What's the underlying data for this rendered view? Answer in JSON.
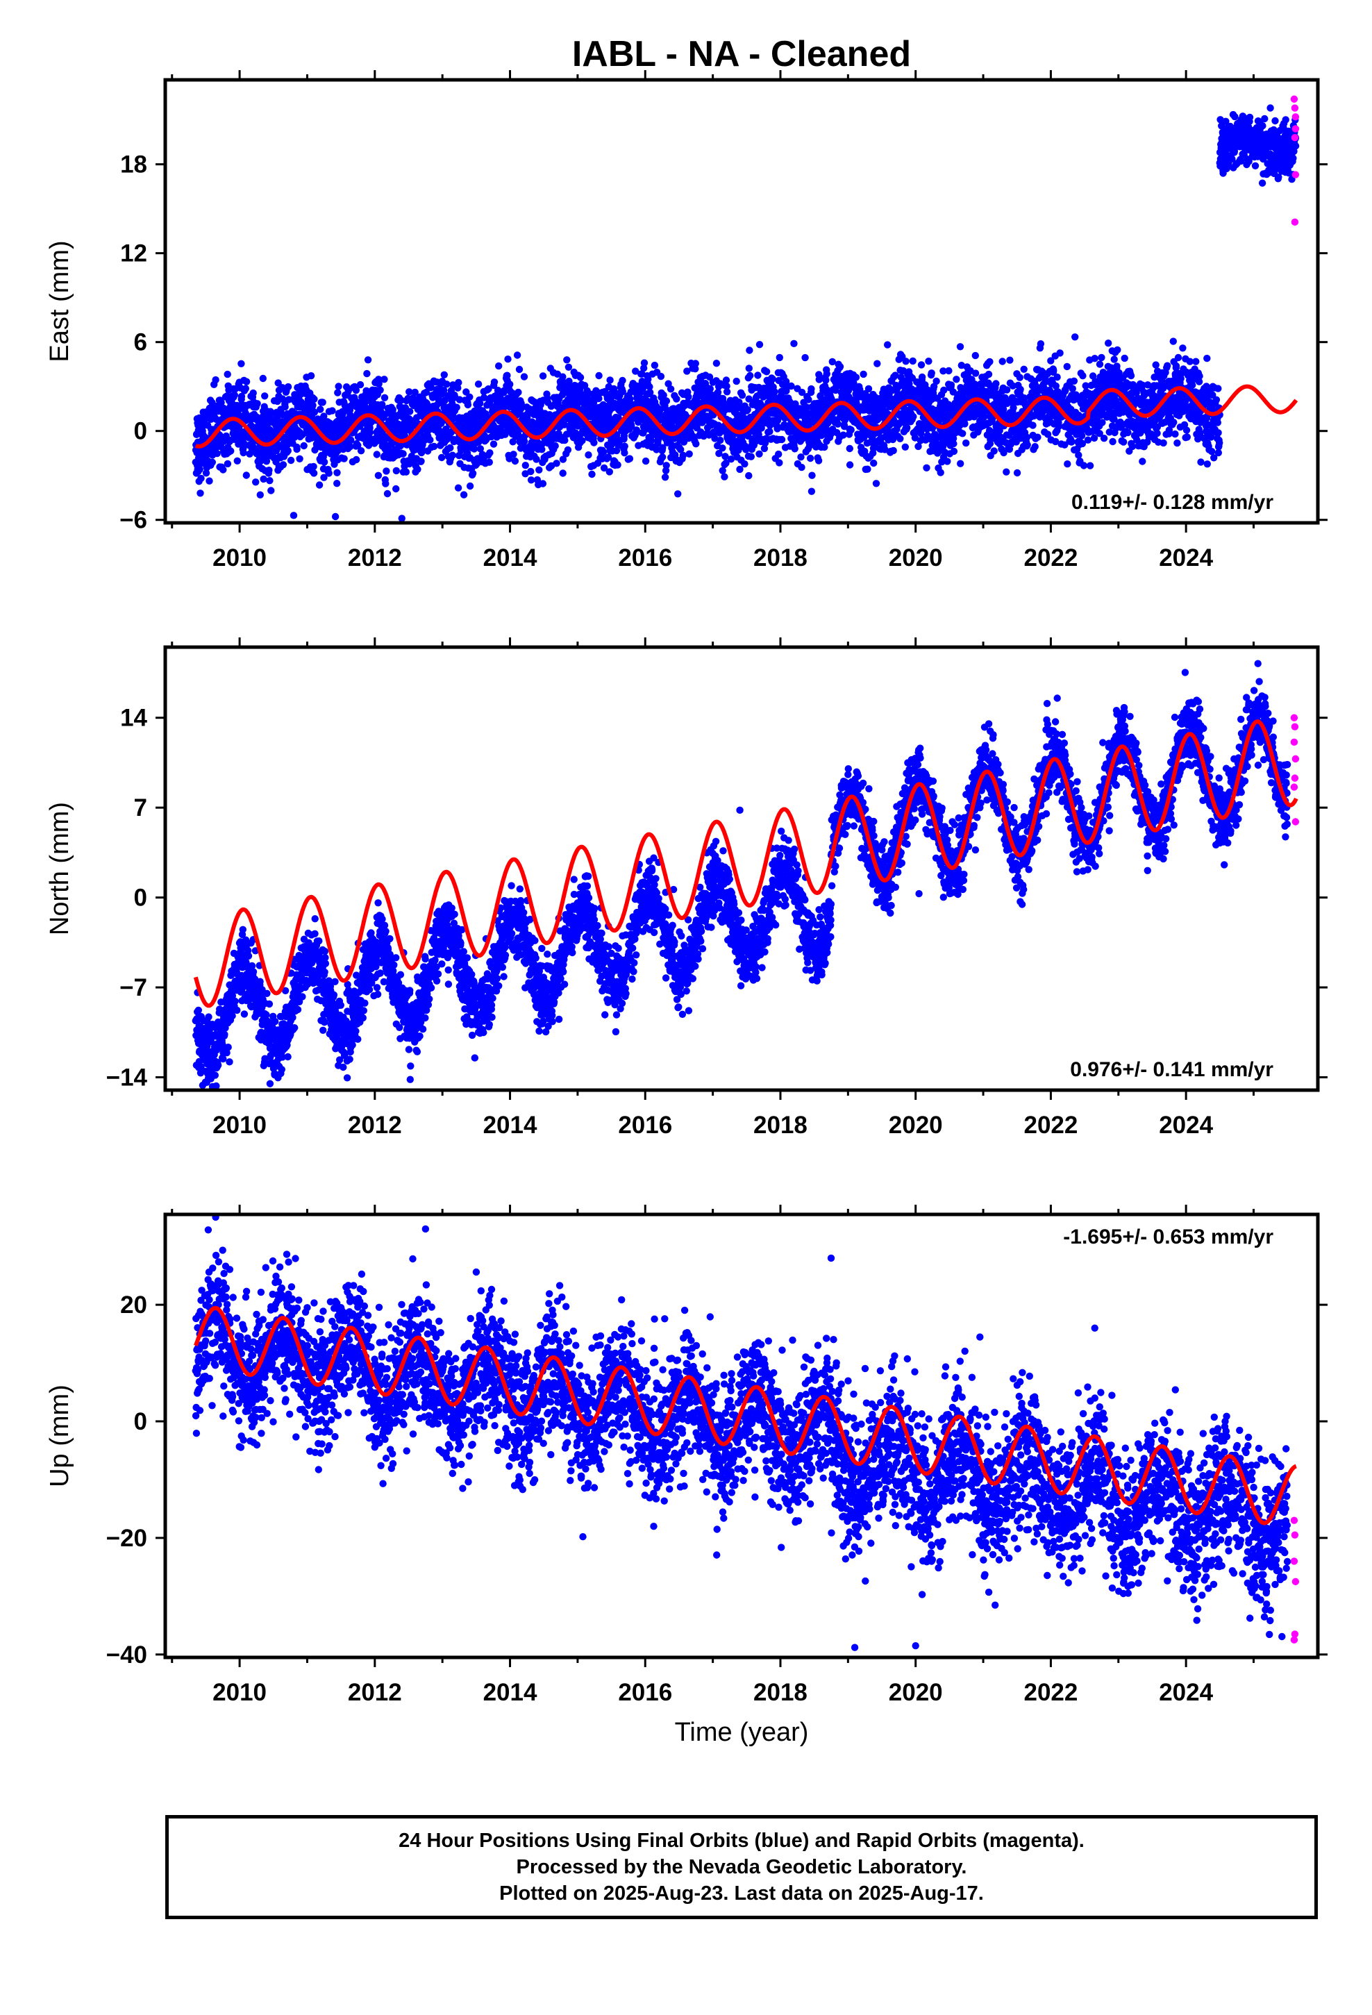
{
  "title": "IABL  - NA - Cleaned",
  "colors": {
    "final": "#0000ff",
    "rapid": "#ff00ff",
    "model": "#ff0000",
    "axis": "#000000",
    "background": "#ffffff"
  },
  "xaxis": {
    "label": "Time (year)",
    "range": [
      2008.9,
      2025.95
    ],
    "ticks": [
      2010,
      2012,
      2014,
      2016,
      2018,
      2020,
      2022,
      2024
    ]
  },
  "footer": {
    "line1": "24 Hour Positions Using Final Orbits (blue) and Rapid Orbits (magenta).",
    "line2": "Processed by the Nevada Geodetic Laboratory.",
    "line3": "Plotted on 2025-Aug-23. Last data on 2025-Aug-17."
  },
  "chart_data": [
    {
      "type": "scatter",
      "name": "East",
      "ylabel": "East (mm)",
      "ylim": [
        -6.2,
        23.7
      ],
      "yticks": [
        -6,
        0,
        6,
        12,
        18
      ],
      "xlim": [
        2008.9,
        2025.95
      ],
      "velocity": "0.119+/- 0.128 mm/yr",
      "velocity_position": "bottom-right",
      "x_start": 2009.35,
      "x_end_final": 2024.5,
      "x_end_rapid": 2025.63,
      "series": [
        {
          "name": "Final orbits",
          "color": "#0000ff",
          "segments": [
            {
              "start": 2009.35,
              "end": 2024.5,
              "offset": 0.0,
              "trend": 0.119,
              "amplitude": 0.8,
              "phase": 0.35,
              "noise": 1.3
            },
            {
              "start": 2024.5,
              "end": 2025.63,
              "offset": 19.3,
              "trend": 0.0,
              "amplitude": 0.4,
              "phase": 0.35,
              "noise": 0.9
            }
          ]
        },
        {
          "name": "Rapid orbits",
          "color": "#ff00ff",
          "points": [
            [
              2025.6,
              22.4
            ],
            [
              2025.61,
              21.8
            ],
            [
              2025.62,
              20.4
            ],
            [
              2025.61,
              19.8
            ],
            [
              2025.62,
              17.3
            ],
            [
              2025.61,
              14.1
            ],
            [
              2025.62,
              21.2
            ]
          ]
        }
      ],
      "model": {
        "color": "#ff0000",
        "anchor_x": 2009.35,
        "anchor_y": -1.0,
        "trend": 0.119,
        "amplitude": 0.9,
        "phase": 0.35,
        "break_x": 2022.55,
        "break_offset": 0.4
      },
      "outliers": [
        [
          2009.4,
          -3.4
        ],
        [
          2011.9,
          4.8
        ],
        [
          2018.2,
          5.9
        ],
        [
          2022.65,
          4.9
        ],
        [
          2012.4,
          -5.9
        ],
        [
          2010.8,
          -5.7
        ]
      ]
    },
    {
      "type": "scatter",
      "name": "North",
      "ylabel": "North (mm)",
      "ylim": [
        -15,
        19.5
      ],
      "yticks": [
        -14,
        -7,
        0,
        7,
        14
      ],
      "xlim": [
        2008.9,
        2025.95
      ],
      "velocity": "0.976+/- 0.141 mm/yr",
      "velocity_position": "bottom-right",
      "x_start": 2009.35,
      "x_end_final": 2025.5,
      "x_end_rapid": 2025.63,
      "series": [
        {
          "name": "Final orbits",
          "color": "#0000ff",
          "segments": [
            {
              "start": 2009.35,
              "end": 2018.75,
              "offset": -9.6,
              "trend": 0.976,
              "amplitude": 3.3,
              "phase": 0.2,
              "noise": 1.3
            },
            {
              "start": 2018.75,
              "end": 2025.5,
              "offset": -5.0,
              "trend": 0.976,
              "amplitude": 3.6,
              "phase": 0.2,
              "noise": 1.3
            }
          ]
        },
        {
          "name": "Rapid orbits",
          "color": "#ff00ff",
          "points": [
            [
              2025.6,
              14.0
            ],
            [
              2025.61,
              13.3
            ],
            [
              2025.6,
              12.1
            ],
            [
              2025.62,
              10.8
            ],
            [
              2025.61,
              9.3
            ],
            [
              2025.6,
              8.6
            ],
            [
              2025.62,
              5.9
            ]
          ]
        }
      ],
      "model": {
        "color": "#ff0000",
        "anchor_x": 2009.35,
        "anchor_y": -6.2,
        "trend": 0.976,
        "amplitude": 3.5,
        "phase": 0.2,
        "break_x": null,
        "break_offset": 0
      },
      "outliers": [
        [
          2009.4,
          -10.0
        ],
        [
          2009.85,
          -12.8
        ],
        [
          2017.4,
          6.8
        ],
        [
          2020.05,
          0.3
        ],
        [
          2010.45,
          -14.5
        ]
      ]
    },
    {
      "type": "scatter",
      "name": "Up",
      "ylabel": "Up (mm)",
      "ylim": [
        -40.5,
        35.5
      ],
      "yticks": [
        -40,
        -20,
        0,
        20
      ],
      "xlim": [
        2008.9,
        2025.95
      ],
      "velocity": "-1.695+/- 0.653 mm/yr",
      "velocity_position": "top-right",
      "x_start": 2009.35,
      "x_end_final": 2025.5,
      "x_end_rapid": 2025.63,
      "series": [
        {
          "name": "Final orbits",
          "color": "#0000ff",
          "segments": [
            {
              "start": 2009.35,
              "end": 2018.75,
              "offset": 13.0,
              "trend": -1.695,
              "amplitude": 5.0,
              "phase": 0.6,
              "noise": 5.5
            },
            {
              "start": 2018.75,
              "end": 2025.5,
              "offset": 10.0,
              "trend": -1.695,
              "amplitude": 5.0,
              "phase": 0.6,
              "noise": 6.0
            }
          ]
        },
        {
          "name": "Rapid orbits",
          "color": "#ff00ff",
          "points": [
            [
              2025.6,
              -17.0
            ],
            [
              2025.61,
              -19.5
            ],
            [
              2025.6,
              -24.0
            ],
            [
              2025.62,
              -27.5
            ],
            [
              2025.61,
              -36.5
            ],
            [
              2025.6,
              -37.5
            ]
          ]
        }
      ],
      "model": {
        "color": "#ff0000",
        "anchor_x": 2009.35,
        "anchor_y": 13.0,
        "trend": -1.695,
        "amplitude": 5.3,
        "phase": 0.6,
        "break_x": null,
        "break_offset": 0
      },
      "outliers": [
        [
          2009.4,
          5.5
        ],
        [
          2012.75,
          33.0
        ],
        [
          2018.75,
          28.0
        ],
        [
          2019.1,
          -38.8
        ],
        [
          2020.0,
          -38.5
        ],
        [
          2013.3,
          -11.5
        ],
        [
          2022.65,
          16.0
        ]
      ]
    }
  ]
}
